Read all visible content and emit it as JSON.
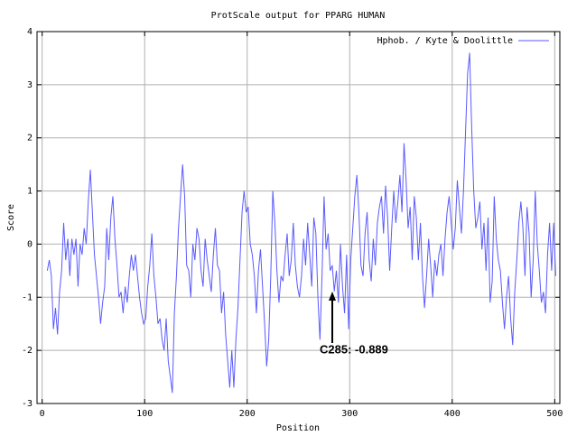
{
  "chart_data": {
    "type": "line",
    "title": "ProtScale output for PPARG HUMAN",
    "xlabel": "Position",
    "ylabel": "Score",
    "annotation": "C285: -0.889",
    "legend": "top right",
    "grid": true,
    "xlim": [
      -5,
      505
    ],
    "ylim": [
      -3,
      4
    ],
    "xticks": [
      0,
      100,
      200,
      300,
      400,
      500
    ],
    "yticks": [
      -3,
      -2,
      -1,
      0,
      1,
      2,
      3,
      4
    ],
    "x": [
      5,
      7,
      9,
      11,
      13,
      15,
      17,
      19,
      21,
      23,
      25,
      27,
      29,
      31,
      33,
      35,
      37,
      39,
      41,
      43,
      45,
      47,
      49,
      51,
      53,
      55,
      57,
      59,
      61,
      63,
      65,
      67,
      69,
      71,
      73,
      75,
      77,
      79,
      81,
      83,
      85,
      87,
      89,
      91,
      93,
      95,
      97,
      99,
      101,
      103,
      105,
      107,
      109,
      111,
      113,
      115,
      117,
      119,
      121,
      123,
      125,
      127,
      129,
      131,
      133,
      135,
      137,
      139,
      141,
      143,
      145,
      147,
      149,
      151,
      153,
      155,
      157,
      159,
      161,
      163,
      165,
      167,
      169,
      171,
      173,
      175,
      177,
      179,
      181,
      183,
      185,
      187,
      189,
      191,
      193,
      195,
      197,
      199,
      201,
      203,
      205,
      207,
      209,
      211,
      213,
      215,
      217,
      219,
      221,
      223,
      225,
      227,
      229,
      231,
      233,
      235,
      237,
      239,
      241,
      243,
      245,
      247,
      249,
      251,
      253,
      255,
      257,
      259,
      261,
      263,
      265,
      267,
      269,
      271,
      273,
      275,
      277,
      279,
      281,
      283,
      285,
      287,
      289,
      291,
      293,
      295,
      297,
      299,
      301,
      303,
      305,
      307,
      309,
      311,
      313,
      315,
      317,
      319,
      321,
      323,
      325,
      327,
      329,
      331,
      333,
      335,
      337,
      339,
      341,
      343,
      345,
      347,
      349,
      351,
      353,
      355,
      357,
      359,
      361,
      363,
      365,
      367,
      369,
      371,
      373,
      375,
      377,
      379,
      381,
      383,
      385,
      387,
      389,
      391,
      393,
      395,
      397,
      399,
      401,
      403,
      405,
      407,
      409,
      411,
      413,
      415,
      417,
      419,
      421,
      423,
      425,
      427,
      429,
      431,
      433,
      435,
      437,
      439,
      441,
      443,
      445,
      447,
      449,
      451,
      453,
      455,
      457,
      459,
      461,
      463,
      465,
      467,
      469,
      471,
      473,
      475,
      477,
      479,
      481,
      483,
      485,
      487,
      489,
      491,
      493,
      495,
      497,
      499,
      501
    ],
    "series": [
      {
        "name": "Hphob. / Kyte & Doolittle",
        "color": "#5a5aff",
        "values": [
          -0.5,
          -0.3,
          -0.6,
          -1.6,
          -1.2,
          -1.7,
          -0.9,
          -0.5,
          0.4,
          -0.3,
          0.1,
          -0.6,
          0.1,
          -0.2,
          0.1,
          -0.8,
          0.0,
          -0.2,
          0.3,
          0.0,
          0.8,
          1.4,
          0.6,
          -0.2,
          -0.6,
          -1.0,
          -1.5,
          -1.1,
          -0.8,
          0.3,
          -0.3,
          0.5,
          0.9,
          0.1,
          -0.4,
          -1.0,
          -0.9,
          -1.3,
          -0.8,
          -1.1,
          -0.6,
          -0.2,
          -0.5,
          -0.2,
          -0.6,
          -1.0,
          -1.3,
          -1.5,
          -1.4,
          -0.8,
          -0.4,
          0.2,
          -0.6,
          -1.0,
          -1.5,
          -1.4,
          -1.8,
          -2.0,
          -1.4,
          -2.2,
          -2.5,
          -2.8,
          -1.3,
          -0.6,
          0.3,
          0.9,
          1.5,
          0.9,
          -0.4,
          -0.5,
          -1.0,
          0.0,
          -0.3,
          0.3,
          0.1,
          -0.5,
          -0.8,
          0.1,
          -0.3,
          -0.6,
          -0.9,
          -0.2,
          0.3,
          -0.4,
          -0.5,
          -1.3,
          -0.9,
          -1.7,
          -2.2,
          -2.7,
          -2.0,
          -2.7,
          -1.8,
          -1.2,
          -0.3,
          0.6,
          1.0,
          0.6,
          0.7,
          0.0,
          -0.2,
          -0.6,
          -1.3,
          -0.5,
          -0.1,
          -0.8,
          -1.5,
          -2.3,
          -1.8,
          -0.6,
          1.0,
          0.4,
          -0.5,
          -1.1,
          -0.6,
          -0.7,
          -0.2,
          0.2,
          -0.6,
          -0.3,
          0.4,
          -0.4,
          -0.8,
          -1.0,
          -0.6,
          0.1,
          -0.4,
          0.4,
          -0.2,
          -0.8,
          0.5,
          0.2,
          -1.0,
          -1.8,
          -0.6,
          0.9,
          -0.1,
          0.2,
          -0.5,
          -0.4,
          -0.889,
          -0.5,
          -1.1,
          0.0,
          -0.8,
          -1.3,
          -0.2,
          -1.6,
          -0.3,
          0.3,
          0.9,
          1.3,
          0.6,
          -0.4,
          -0.6,
          0.2,
          0.6,
          -0.3,
          -0.7,
          0.1,
          -0.4,
          0.4,
          0.7,
          0.9,
          0.2,
          1.1,
          0.5,
          -0.5,
          0.3,
          1.0,
          0.4,
          0.8,
          1.3,
          0.6,
          1.9,
          1.2,
          0.3,
          0.7,
          -0.3,
          0.9,
          0.5,
          -0.3,
          0.4,
          -0.6,
          -1.2,
          -0.6,
          0.1,
          -0.4,
          -1.0,
          -0.3,
          -0.6,
          -0.2,
          0.0,
          -0.6,
          0.1,
          0.6,
          0.9,
          0.4,
          -0.1,
          0.3,
          1.2,
          0.7,
          0.2,
          1.0,
          2.1,
          3.2,
          3.6,
          2.2,
          1.0,
          0.3,
          0.5,
          0.8,
          -0.1,
          0.4,
          -0.5,
          0.5,
          -1.1,
          -0.7,
          0.9,
          0.1,
          -0.3,
          -0.5,
          -1.1,
          -1.6,
          -1.0,
          -0.6,
          -1.4,
          -1.9,
          -0.9,
          -0.3,
          0.4,
          0.8,
          0.3,
          -0.6,
          0.7,
          0.2,
          -1.0,
          -0.3,
          1.0,
          0.0,
          -0.5,
          -1.1,
          -0.9,
          -1.3,
          -0.2,
          0.4,
          -0.5,
          0.4,
          -0.6
        ]
      }
    ]
  }
}
